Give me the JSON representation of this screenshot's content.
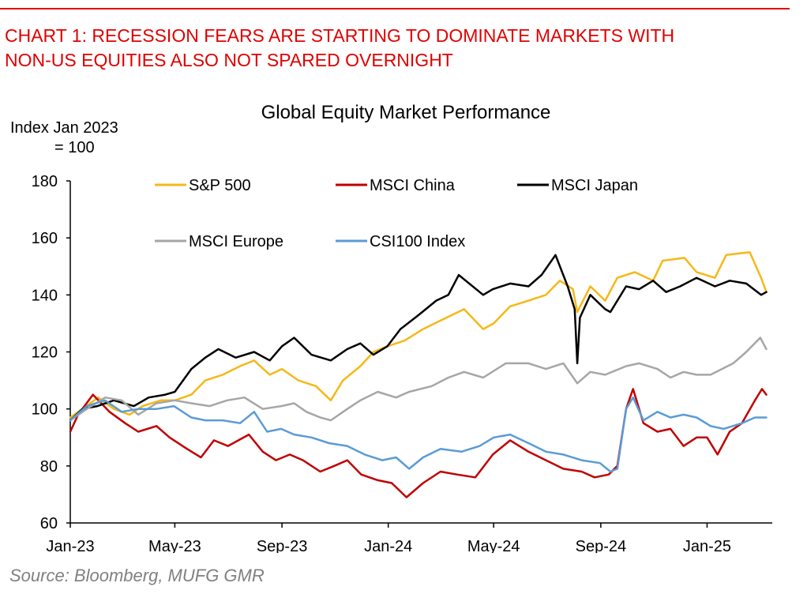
{
  "headline": {
    "line1": "CHART 1: RECESSION FEARS ARE STARTING TO DOMINATE MARKETS WITH",
    "line2": "NON-US EQUITIES ALSO NOT SPARED OVERNIGHT"
  },
  "source": "Source: Bloomberg, MUFG GMR",
  "colors": {
    "headline": "#e00000",
    "source": "#808080"
  },
  "chart_data": {
    "type": "line",
    "title": "Global Equity Market Performance",
    "ylabel_line1": "Index Jan 2023",
    "ylabel_line2": "= 100",
    "ylim": [
      60,
      180
    ],
    "yticks": [
      "60",
      "80",
      "100",
      "120",
      "140",
      "160",
      "180"
    ],
    "xlim": [
      "2023-01-01",
      "2025-03-15"
    ],
    "xticks": [
      {
        "label": "Jan-23",
        "date": "2023-01-01"
      },
      {
        "label": "May-23",
        "date": "2023-05-01"
      },
      {
        "label": "Sep-23",
        "date": "2023-09-01"
      },
      {
        "label": "Jan-24",
        "date": "2024-01-01"
      },
      {
        "label": "May-24",
        "date": "2024-05-01"
      },
      {
        "label": "Sep-24",
        "date": "2024-09-01"
      },
      {
        "label": "Jan-25",
        "date": "2025-01-01"
      }
    ],
    "grid": false,
    "legend_position": "top-center",
    "series": [
      {
        "name": "S&P 500",
        "color": "#f6b818",
        "points": [
          [
            "2023-01-01",
            97
          ],
          [
            "2023-01-15",
            100
          ],
          [
            "2023-02-02",
            104
          ],
          [
            "2023-02-20",
            100
          ],
          [
            "2023-03-10",
            98
          ],
          [
            "2023-03-25",
            101
          ],
          [
            "2023-04-15",
            103
          ],
          [
            "2023-05-01",
            103
          ],
          [
            "2023-05-20",
            105
          ],
          [
            "2023-06-05",
            110
          ],
          [
            "2023-06-25",
            112
          ],
          [
            "2023-07-15",
            115
          ],
          [
            "2023-07-31",
            117
          ],
          [
            "2023-08-18",
            112
          ],
          [
            "2023-09-01",
            114
          ],
          [
            "2023-09-20",
            110
          ],
          [
            "2023-10-10",
            108
          ],
          [
            "2023-10-27",
            103
          ],
          [
            "2023-11-10",
            110
          ],
          [
            "2023-11-30",
            115
          ],
          [
            "2023-12-15",
            120
          ],
          [
            "2023-12-31",
            122
          ],
          [
            "2024-01-20",
            124
          ],
          [
            "2024-02-10",
            128
          ],
          [
            "2024-03-01",
            131
          ],
          [
            "2024-03-28",
            135
          ],
          [
            "2024-04-19",
            128
          ],
          [
            "2024-05-01",
            130
          ],
          [
            "2024-05-20",
            136
          ],
          [
            "2024-06-10",
            138
          ],
          [
            "2024-06-30",
            140
          ],
          [
            "2024-07-16",
            145
          ],
          [
            "2024-07-31",
            142
          ],
          [
            "2024-08-05",
            134
          ],
          [
            "2024-08-20",
            143
          ],
          [
            "2024-09-06",
            138
          ],
          [
            "2024-09-20",
            146
          ],
          [
            "2024-10-10",
            148
          ],
          [
            "2024-10-31",
            145
          ],
          [
            "2024-11-11",
            152
          ],
          [
            "2024-12-06",
            153
          ],
          [
            "2024-12-20",
            148
          ],
          [
            "2025-01-10",
            146
          ],
          [
            "2025-01-23",
            154
          ],
          [
            "2025-02-19",
            155
          ],
          [
            "2025-03-04",
            146
          ],
          [
            "2025-03-10",
            141
          ]
        ]
      },
      {
        "name": "MSCI China",
        "color": "#c00000",
        "points": [
          [
            "2023-01-01",
            92
          ],
          [
            "2023-01-10",
            98
          ],
          [
            "2023-01-27",
            105
          ],
          [
            "2023-02-15",
            99
          ],
          [
            "2023-03-05",
            95
          ],
          [
            "2023-03-20",
            92
          ],
          [
            "2023-04-10",
            94
          ],
          [
            "2023-04-25",
            90
          ],
          [
            "2023-05-15",
            86
          ],
          [
            "2023-05-31",
            83
          ],
          [
            "2023-06-15",
            89
          ],
          [
            "2023-07-01",
            87
          ],
          [
            "2023-07-25",
            91
          ],
          [
            "2023-08-10",
            85
          ],
          [
            "2023-08-25",
            82
          ],
          [
            "2023-09-10",
            84
          ],
          [
            "2023-09-25",
            82
          ],
          [
            "2023-10-15",
            78
          ],
          [
            "2023-10-31",
            80
          ],
          [
            "2023-11-15",
            82
          ],
          [
            "2023-12-01",
            77
          ],
          [
            "2023-12-20",
            75
          ],
          [
            "2024-01-05",
            74
          ],
          [
            "2024-01-22",
            69
          ],
          [
            "2024-02-10",
            74
          ],
          [
            "2024-03-01",
            78
          ],
          [
            "2024-03-20",
            77
          ],
          [
            "2024-04-10",
            76
          ],
          [
            "2024-04-30",
            84
          ],
          [
            "2024-05-20",
            89
          ],
          [
            "2024-06-10",
            85
          ],
          [
            "2024-06-30",
            82
          ],
          [
            "2024-07-20",
            79
          ],
          [
            "2024-08-10",
            78
          ],
          [
            "2024-08-25",
            76
          ],
          [
            "2024-09-10",
            77
          ],
          [
            "2024-09-20",
            80
          ],
          [
            "2024-09-30",
            100
          ],
          [
            "2024-10-08",
            107
          ],
          [
            "2024-10-20",
            95
          ],
          [
            "2024-11-05",
            92
          ],
          [
            "2024-11-20",
            93
          ],
          [
            "2024-12-05",
            87
          ],
          [
            "2024-12-20",
            90
          ],
          [
            "2025-01-01",
            90
          ],
          [
            "2025-01-13",
            84
          ],
          [
            "2025-01-27",
            92
          ],
          [
            "2025-02-10",
            95
          ],
          [
            "2025-02-25",
            103
          ],
          [
            "2025-03-05",
            107
          ],
          [
            "2025-03-10",
            105
          ]
        ]
      },
      {
        "name": "MSCI Japan",
        "color": "#000000",
        "points": [
          [
            "2023-01-01",
            96
          ],
          [
            "2023-01-15",
            100
          ],
          [
            "2023-02-01",
            101
          ],
          [
            "2023-02-20",
            103
          ],
          [
            "2023-03-15",
            101
          ],
          [
            "2023-04-01",
            104
          ],
          [
            "2023-04-20",
            105
          ],
          [
            "2023-05-01",
            106
          ],
          [
            "2023-05-20",
            114
          ],
          [
            "2023-06-05",
            118
          ],
          [
            "2023-06-20",
            121
          ],
          [
            "2023-07-10",
            118
          ],
          [
            "2023-07-31",
            120
          ],
          [
            "2023-08-18",
            117
          ],
          [
            "2023-09-01",
            122
          ],
          [
            "2023-09-15",
            125
          ],
          [
            "2023-10-05",
            119
          ],
          [
            "2023-10-27",
            117
          ],
          [
            "2023-11-15",
            121
          ],
          [
            "2023-11-30",
            123
          ],
          [
            "2023-12-15",
            119
          ],
          [
            "2023-12-31",
            122
          ],
          [
            "2024-01-15",
            128
          ],
          [
            "2024-02-05",
            133
          ],
          [
            "2024-02-25",
            138
          ],
          [
            "2024-03-10",
            140
          ],
          [
            "2024-03-22",
            147
          ],
          [
            "2024-04-19",
            140
          ],
          [
            "2024-04-30",
            142
          ],
          [
            "2024-05-20",
            144
          ],
          [
            "2024-06-10",
            143
          ],
          [
            "2024-06-25",
            147
          ],
          [
            "2024-07-11",
            154
          ],
          [
            "2024-07-25",
            143
          ],
          [
            "2024-08-02",
            135
          ],
          [
            "2024-08-05",
            116
          ],
          [
            "2024-08-08",
            132
          ],
          [
            "2024-08-20",
            140
          ],
          [
            "2024-09-06",
            135
          ],
          [
            "2024-09-12",
            134
          ],
          [
            "2024-09-30",
            143
          ],
          [
            "2024-10-15",
            142
          ],
          [
            "2024-10-31",
            145
          ],
          [
            "2024-11-15",
            141
          ],
          [
            "2024-12-01",
            143
          ],
          [
            "2024-12-20",
            146
          ],
          [
            "2025-01-10",
            143
          ],
          [
            "2025-01-27",
            145
          ],
          [
            "2025-02-15",
            144
          ],
          [
            "2025-03-04",
            140
          ],
          [
            "2025-03-10",
            141
          ]
        ]
      },
      {
        "name": "MSCI Europe",
        "color": "#a6a6a6",
        "points": [
          [
            "2023-01-01",
            96
          ],
          [
            "2023-01-20",
            100
          ],
          [
            "2023-02-10",
            104
          ],
          [
            "2023-03-01",
            103
          ],
          [
            "2023-03-20",
            98
          ],
          [
            "2023-04-10",
            102
          ],
          [
            "2023-05-01",
            103
          ],
          [
            "2023-05-20",
            102
          ],
          [
            "2023-06-10",
            101
          ],
          [
            "2023-06-30",
            103
          ],
          [
            "2023-07-20",
            104
          ],
          [
            "2023-08-10",
            100
          ],
          [
            "2023-08-31",
            101
          ],
          [
            "2023-09-15",
            102
          ],
          [
            "2023-09-29",
            99
          ],
          [
            "2023-10-15",
            97
          ],
          [
            "2023-10-27",
            96
          ],
          [
            "2023-11-15",
            100
          ],
          [
            "2023-11-30",
            103
          ],
          [
            "2023-12-20",
            106
          ],
          [
            "2024-01-10",
            104
          ],
          [
            "2024-01-25",
            106
          ],
          [
            "2024-02-20",
            108
          ],
          [
            "2024-03-10",
            111
          ],
          [
            "2024-03-28",
            113
          ],
          [
            "2024-04-19",
            111
          ],
          [
            "2024-05-15",
            116
          ],
          [
            "2024-06-10",
            116
          ],
          [
            "2024-06-30",
            114
          ],
          [
            "2024-07-20",
            116
          ],
          [
            "2024-08-05",
            109
          ],
          [
            "2024-08-20",
            113
          ],
          [
            "2024-09-06",
            112
          ],
          [
            "2024-09-30",
            115
          ],
          [
            "2024-10-15",
            116
          ],
          [
            "2024-11-05",
            114
          ],
          [
            "2024-11-20",
            111
          ],
          [
            "2024-12-05",
            113
          ],
          [
            "2024-12-20",
            112
          ],
          [
            "2025-01-05",
            112
          ],
          [
            "2025-01-31",
            116
          ],
          [
            "2025-02-15",
            120
          ],
          [
            "2025-03-03",
            125
          ],
          [
            "2025-03-10",
            121
          ]
        ]
      },
      {
        "name": "CSI100 Index",
        "color": "#5b9bd5",
        "points": [
          [
            "2023-01-01",
            96
          ],
          [
            "2023-01-20",
            101
          ],
          [
            "2023-02-10",
            103
          ],
          [
            "2023-03-01",
            99
          ],
          [
            "2023-03-20",
            100
          ],
          [
            "2023-04-10",
            100
          ],
          [
            "2023-04-30",
            101
          ],
          [
            "2023-05-20",
            97
          ],
          [
            "2023-06-05",
            96
          ],
          [
            "2023-06-25",
            96
          ],
          [
            "2023-07-15",
            95
          ],
          [
            "2023-07-31",
            99
          ],
          [
            "2023-08-15",
            92
          ],
          [
            "2023-08-31",
            93
          ],
          [
            "2023-09-15",
            91
          ],
          [
            "2023-10-05",
            90
          ],
          [
            "2023-10-25",
            88
          ],
          [
            "2023-11-15",
            87
          ],
          [
            "2023-12-05",
            84
          ],
          [
            "2023-12-25",
            82
          ],
          [
            "2024-01-10",
            83
          ],
          [
            "2024-01-25",
            79
          ],
          [
            "2024-02-10",
            83
          ],
          [
            "2024-03-01",
            86
          ],
          [
            "2024-03-25",
            85
          ],
          [
            "2024-04-15",
            87
          ],
          [
            "2024-05-01",
            90
          ],
          [
            "2024-05-20",
            91
          ],
          [
            "2024-06-10",
            88
          ],
          [
            "2024-06-30",
            85
          ],
          [
            "2024-07-20",
            84
          ],
          [
            "2024-08-10",
            82
          ],
          [
            "2024-08-31",
            81
          ],
          [
            "2024-09-12",
            78
          ],
          [
            "2024-09-20",
            79
          ],
          [
            "2024-09-30",
            100
          ],
          [
            "2024-10-08",
            104
          ],
          [
            "2024-10-20",
            96
          ],
          [
            "2024-11-05",
            99
          ],
          [
            "2024-11-20",
            97
          ],
          [
            "2024-12-05",
            98
          ],
          [
            "2024-12-20",
            97
          ],
          [
            "2025-01-05",
            94
          ],
          [
            "2025-01-20",
            93
          ],
          [
            "2025-02-10",
            95
          ],
          [
            "2025-02-25",
            97
          ],
          [
            "2025-03-10",
            97
          ]
        ]
      }
    ]
  }
}
